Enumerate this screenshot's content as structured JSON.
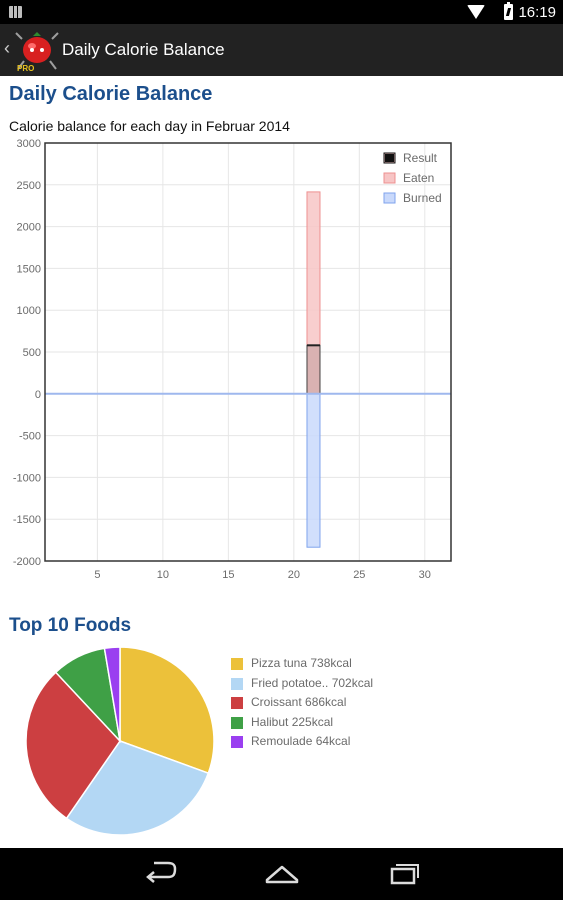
{
  "status_bar": {
    "time": "16:19",
    "icons": [
      "notification-icon",
      "wifi-icon",
      "battery-icon"
    ]
  },
  "action_bar": {
    "title": "Daily Calorie Balance",
    "logo_text": "PRO",
    "back_icon": "chevron-left-icon"
  },
  "page": {
    "title": "Daily Calorie Balance",
    "pie_title": "Top 10 Foods"
  },
  "nav_bar": {
    "icons": [
      "back-icon",
      "home-icon",
      "recent-apps-icon"
    ]
  },
  "chart_data": [
    {
      "type": "bar",
      "title": "Calorie balance for each day in Februar 2014",
      "xlabel": "",
      "ylabel": "",
      "xlim": [
        1,
        32
      ],
      "ylim": [
        -2000,
        3000
      ],
      "xticks": [
        5,
        10,
        15,
        20,
        25,
        30
      ],
      "yticks": [
        3000,
        2500,
        2000,
        1500,
        1000,
        500,
        0,
        -500,
        -1000,
        -1500,
        -2000
      ],
      "grid": true,
      "legend": "top-right",
      "series": [
        {
          "name": "Result",
          "color": "#111111",
          "points": [
            {
              "x": 21.5,
              "y": 580
            }
          ]
        },
        {
          "name": "Eaten",
          "color": "#f08080",
          "points": [
            {
              "x": 21.5,
              "y": 2415
            }
          ]
        },
        {
          "name": "Burned",
          "color": "#6f96e8",
          "points": [
            {
              "x": 21.5,
              "y": -1835
            }
          ]
        }
      ]
    },
    {
      "type": "pie",
      "title": "",
      "slices": [
        {
          "label": "Pizza tuna 738kcal",
          "value": 738,
          "color": "#ecc13a"
        },
        {
          "label": "Fried potatoe.. 702kcal",
          "value": 702,
          "color": "#b3d7f4"
        },
        {
          "label": "Croissant 686kcal",
          "value": 686,
          "color": "#cc3f41"
        },
        {
          "label": "Halibut 225kcal",
          "value": 225,
          "color": "#3fa046"
        },
        {
          "label": "Remoulade 64kcal",
          "value": 64,
          "color": "#9a3ff0"
        }
      ]
    }
  ]
}
